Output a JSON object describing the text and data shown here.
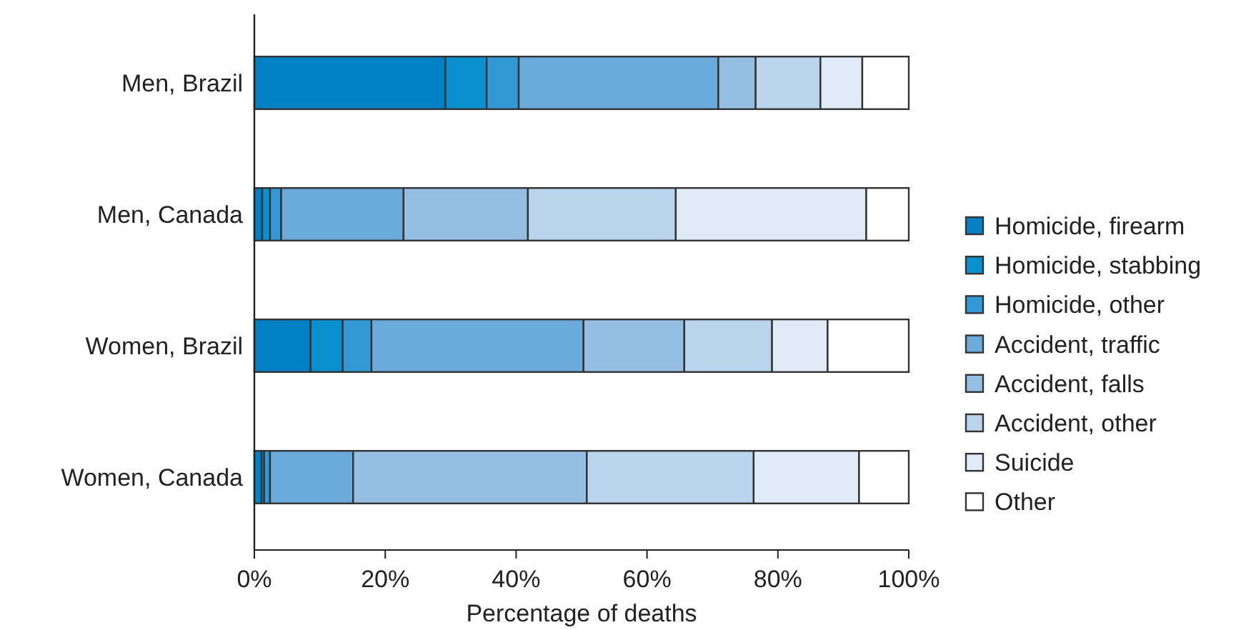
{
  "chart_data": {
    "type": "bar",
    "orientation": "horizontal",
    "stacked": true,
    "xlabel": "Percentage of deaths",
    "categories": [
      "Men, Brazil",
      "Men, Canada",
      "Women, Brazil",
      "Women, Canada"
    ],
    "series": [
      {
        "name": "Homicide, firearm",
        "color": "#0081c6",
        "values": [
          29.2,
          1.2,
          8.6,
          1.1
        ]
      },
      {
        "name": "Homicide, stabbing",
        "color": "#0a8fcf",
        "values": [
          6.3,
          1.2,
          4.9,
          0.4
        ]
      },
      {
        "name": "Homicide, other",
        "color": "#3399d6",
        "values": [
          4.9,
          1.7,
          4.4,
          0.9
        ]
      },
      {
        "name": "Accident, traffic",
        "color": "#6aabdc",
        "values": [
          30.5,
          18.7,
          32.4,
          12.7
        ]
      },
      {
        "name": "Accident, falls",
        "color": "#94bfe3",
        "values": [
          5.7,
          19.0,
          15.4,
          35.7
        ]
      },
      {
        "name": "Accident, other",
        "color": "#bad4ec",
        "values": [
          9.9,
          22.6,
          13.4,
          25.5
        ]
      },
      {
        "name": "Suicide",
        "color": "#e0ebf6",
        "values": [
          6.4,
          29.1,
          8.5,
          16.1
        ]
      },
      {
        "name": "Other",
        "color": "#ffffff",
        "values": [
          7.1,
          6.5,
          12.4,
          7.6
        ]
      }
    ],
    "xlim": [
      0,
      100
    ],
    "xticks": [
      {
        "value": 0,
        "label": "0%"
      },
      {
        "value": 20,
        "label": "20%"
      },
      {
        "value": 40,
        "label": "40%"
      },
      {
        "value": 60,
        "label": "60%"
      },
      {
        "value": 80,
        "label": "80%"
      },
      {
        "value": 100,
        "label": "100%"
      }
    ],
    "legend": "right",
    "grid": false
  }
}
